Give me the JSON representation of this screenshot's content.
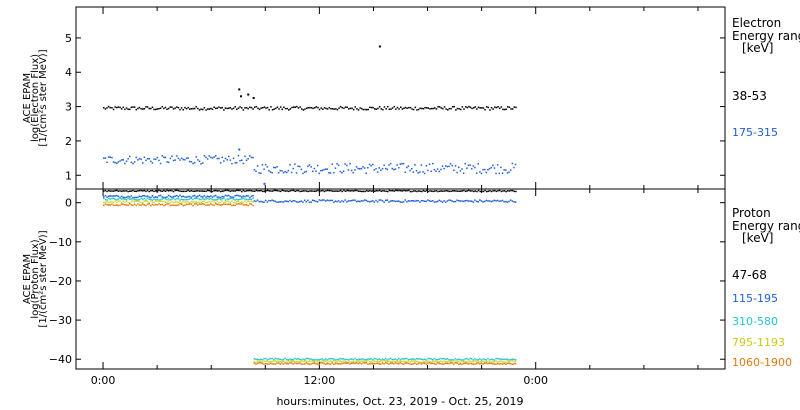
{
  "chart_data": [
    {
      "type": "scatter",
      "panel": "electron",
      "ylabel_lines": [
        "ACE EPAM",
        "log(Electron Flux)",
        "[1/(cm²s ster MeV)]"
      ],
      "ylim": [
        0.6,
        5.9
      ],
      "ytick_values": [
        1,
        2,
        3,
        4,
        5
      ],
      "ytick_labels": [
        "1",
        "2",
        "3",
        "4",
        "5"
      ],
      "legend_title_lines": [
        "Electron",
        "Energy ranges",
        "[keV]"
      ],
      "series": [
        {
          "name": "38-53",
          "color": "#000000",
          "x_range": [
            0.0,
            22.9
          ],
          "base": 2.95,
          "noise": 0.05
        },
        {
          "name": "175-315",
          "color": "#1f5fd6",
          "segments": [
            {
              "x_range": [
                0.0,
                8.35
              ],
              "base": 1.45,
              "noise": 0.12
            },
            {
              "x_range": [
                8.35,
                22.9
              ],
              "base": 1.2,
              "noise": 0.15
            }
          ]
        }
      ],
      "outliers": [
        {
          "x": 7.5,
          "y": 3.5,
          "color": "#000000"
        },
        {
          "x": 7.6,
          "y": 3.3,
          "color": "#000000"
        },
        {
          "x": 8.0,
          "y": 3.35,
          "color": "#000000"
        },
        {
          "x": 8.3,
          "y": 3.25,
          "color": "#000000"
        },
        {
          "x": 15.3,
          "y": 4.75,
          "color": "#000000"
        },
        {
          "x": 7.5,
          "y": 1.75,
          "color": "#1f5fd6"
        },
        {
          "x": 8.9,
          "y": 0.75,
          "color": "#1f5fd6"
        }
      ]
    },
    {
      "type": "scatter",
      "panel": "proton",
      "ylabel_lines": [
        "ACE EPAM",
        "log(Proton Flux)",
        "[1/(cm²s ster MeV)]"
      ],
      "ylim": [
        -42.5,
        3.5
      ],
      "ytick_values": [
        0,
        -10,
        -20,
        -30,
        -40
      ],
      "ytick_labels": [
        "0",
        "−10",
        "−20",
        "−30",
        "−40"
      ],
      "legend_title_lines": [
        "Proton",
        "Energy ranges",
        "[keV]"
      ],
      "series": [
        {
          "name": "47-68",
          "color": "#000000",
          "x_range": [
            0.0,
            22.9
          ],
          "base": 3.0,
          "noise": 0.15
        },
        {
          "name": "115-195",
          "color": "#1f5fd6",
          "segments": [
            {
              "x_range": [
                0.0,
                8.35
              ],
              "base": 1.6,
              "noise": 0.3
            },
            {
              "x_range": [
                8.35,
                22.9
              ],
              "base": 0.4,
              "noise": 0.3
            }
          ]
        },
        {
          "name": "310-580",
          "color": "#1fc4d6",
          "segments": [
            {
              "x_range": [
                0.0,
                8.35
              ],
              "base": 0.9,
              "noise": 0.25
            },
            {
              "x_range": [
                8.35,
                22.9
              ],
              "base": -40.0,
              "noise": 0.2
            }
          ]
        },
        {
          "name": "795-1193",
          "color": "#d6d61f",
          "segments": [
            {
              "x_range": [
                0.0,
                8.35
              ],
              "base": 0.2,
              "noise": 0.25
            },
            {
              "x_range": [
                8.35,
                22.9
              ],
              "base": -40.6,
              "noise": 0.2
            }
          ]
        },
        {
          "name": "1060-1900",
          "color": "#e07a10",
          "segments": [
            {
              "x_range": [
                0.0,
                8.35
              ],
              "base": -0.5,
              "noise": 0.25
            },
            {
              "x_range": [
                8.35,
                22.9
              ],
              "base": -41.1,
              "noise": 0.2
            }
          ]
        }
      ]
    }
  ],
  "x_axis": {
    "xlim": [
      -1.5,
      34.5
    ],
    "tick_values": [
      0,
      12,
      24
    ],
    "tick_labels": [
      "0:00",
      "12:00",
      "0:00"
    ],
    "xlabel": "hours:minutes, Oct. 23, 2019 - Oct. 25, 2019"
  }
}
